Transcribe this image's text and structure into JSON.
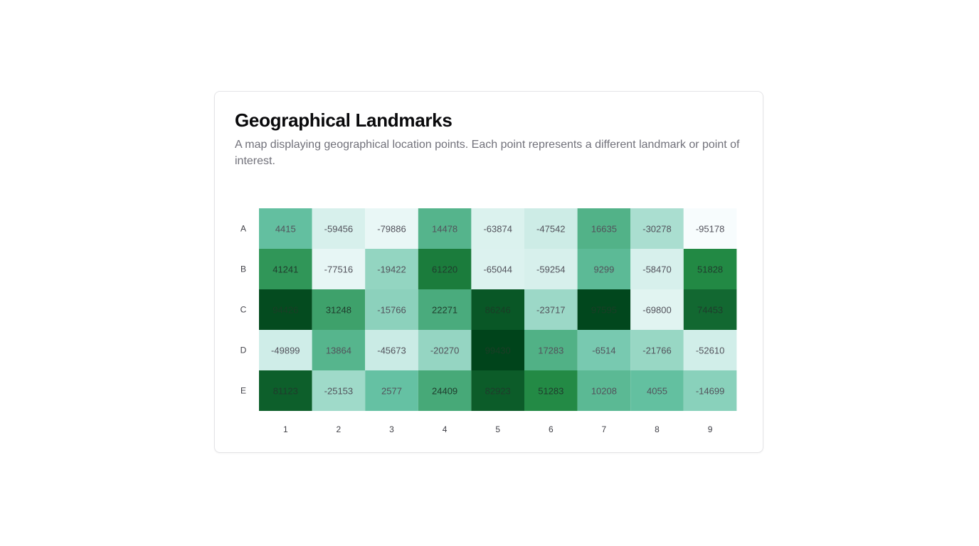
{
  "card": {
    "title": "Geographical Landmarks",
    "description": "A map displaying geographical location points. Each point represents a different landmark or point of interest."
  },
  "chart_data": {
    "type": "heatmap",
    "x_categories": [
      "1",
      "2",
      "3",
      "4",
      "5",
      "6",
      "7",
      "8",
      "9"
    ],
    "y_categories": [
      "A",
      "B",
      "C",
      "D",
      "E"
    ],
    "values": [
      [
        4415,
        -59456,
        -79886,
        14478,
        -63874,
        -47542,
        16635,
        -30278,
        -95178
      ],
      [
        41241,
        -77516,
        -19422,
        61220,
        -65044,
        -59254,
        9299,
        -58470,
        51828
      ],
      [
        94426,
        31248,
        -15766,
        22271,
        86246,
        -23717,
        97595,
        -69800,
        74453
      ],
      [
        -49899,
        13864,
        -45673,
        -20270,
        99430,
        17283,
        -6514,
        -21766,
        -52610
      ],
      [
        81123,
        -25153,
        2577,
        24409,
        82923,
        51283,
        10208,
        4055,
        -14699
      ]
    ],
    "color_scale": [
      "#f7fcfd",
      "#ccece6",
      "#66c2a4",
      "#238b45",
      "#00441b"
    ],
    "title": "Geographical Landmarks",
    "xlabel": "",
    "ylabel": ""
  }
}
